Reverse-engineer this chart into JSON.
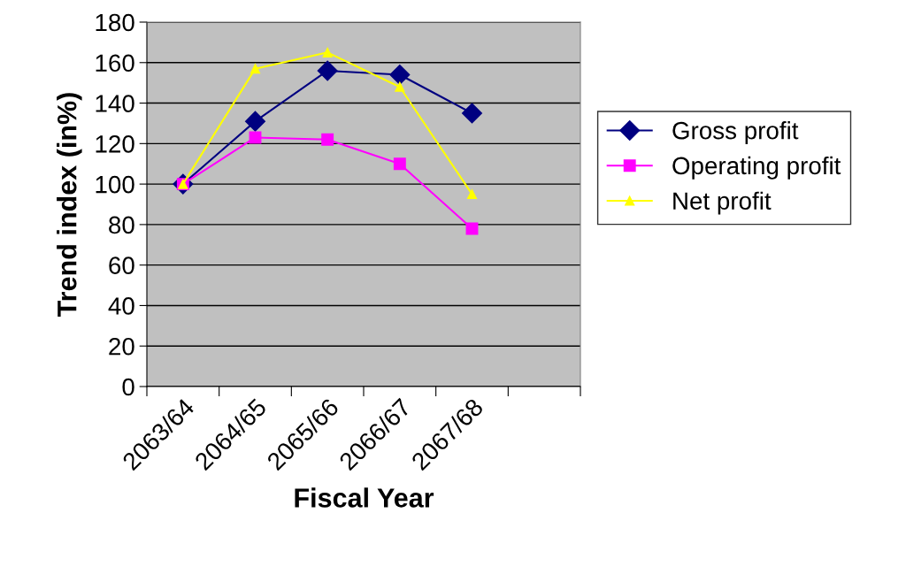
{
  "chart_data": {
    "type": "line",
    "xlabel": "Fiscal Year",
    "ylabel": "Trend index (in%)",
    "categories": [
      "2063/64",
      "2064/65",
      "2065/66",
      "2066/67",
      "2067/68",
      null
    ],
    "series": [
      {
        "name": "Gross profit",
        "color": "#000080",
        "marker": "diamond",
        "values": [
          100,
          131,
          156,
          154,
          135,
          null
        ]
      },
      {
        "name": "Operating profit",
        "color": "#ff00ff",
        "marker": "square",
        "values": [
          100,
          123,
          122,
          110,
          78,
          null
        ]
      },
      {
        "name": "Net profit",
        "color": "#ffff00",
        "marker": "triangle",
        "values": [
          100,
          157,
          165,
          148,
          95,
          null
        ]
      }
    ],
    "ylim": [
      0,
      180
    ],
    "yticks": [
      0,
      20,
      40,
      60,
      80,
      100,
      120,
      140,
      160,
      180
    ],
    "grid": "y",
    "legend": "right",
    "line_style": "solid"
  }
}
